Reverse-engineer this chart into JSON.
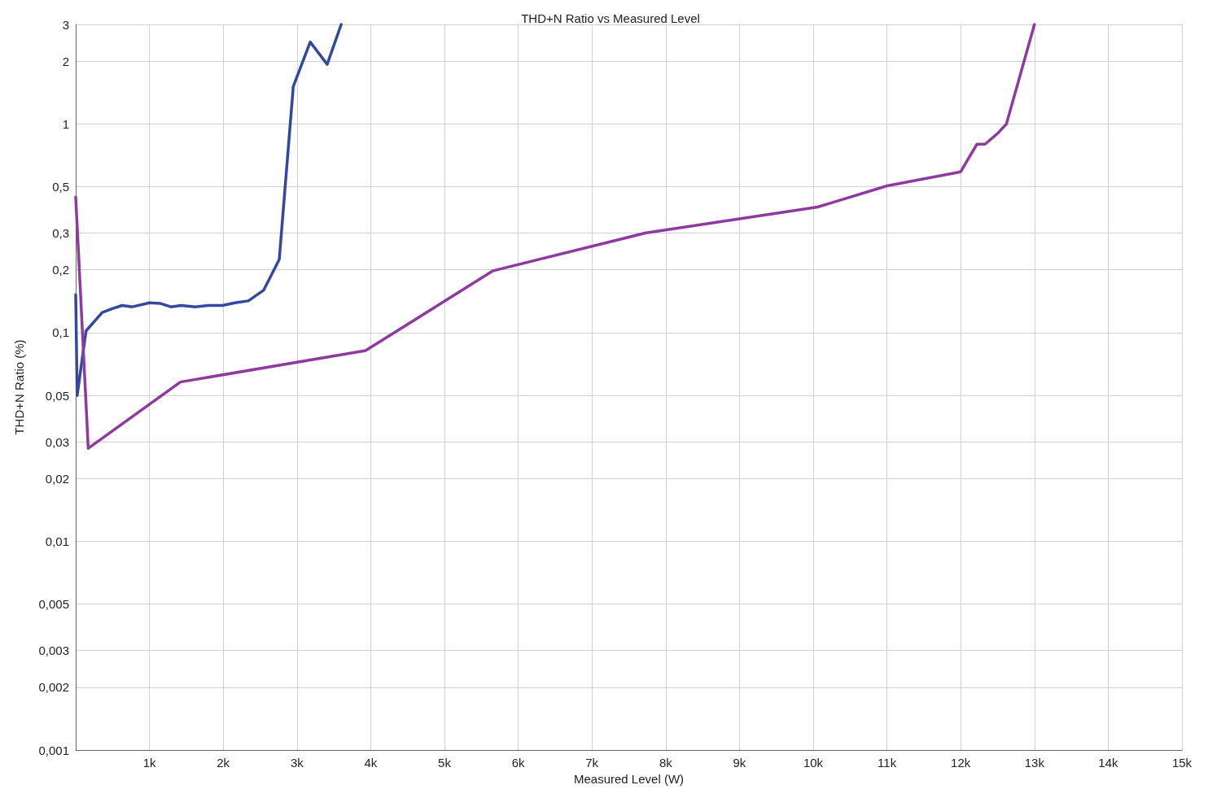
{
  "chart_data": {
    "type": "line",
    "title": "THD+N Ratio vs Measured Level",
    "xlabel": "Measured Level (W)",
    "ylabel": "THD+N Ratio (%)",
    "log": "y",
    "grid": true,
    "marker": "none",
    "line_style": "solid",
    "xlim": [
      0,
      15000
    ],
    "xticks": [
      {
        "value": 0,
        "label": null
      },
      {
        "value": 1000,
        "label": "1k"
      },
      {
        "value": 2000,
        "label": "2k"
      },
      {
        "value": 3000,
        "label": "3k"
      },
      {
        "value": 4000,
        "label": "4k"
      },
      {
        "value": 5000,
        "label": "5k"
      },
      {
        "value": 6000,
        "label": "6k"
      },
      {
        "value": 7000,
        "label": "7k"
      },
      {
        "value": 8000,
        "label": "8k"
      },
      {
        "value": 9000,
        "label": "9k"
      },
      {
        "value": 10000,
        "label": "10k"
      },
      {
        "value": 11000,
        "label": "11k"
      },
      {
        "value": 12000,
        "label": "12k"
      },
      {
        "value": 13000,
        "label": "13k"
      },
      {
        "value": 14000,
        "label": "14k"
      },
      {
        "value": 15000,
        "label": "15k"
      }
    ],
    "ylim": [
      0.001,
      3
    ],
    "yticks": [
      {
        "value": 0.001,
        "label": "0,001"
      },
      {
        "value": 0.002,
        "label": "0,002"
      },
      {
        "value": 0.003,
        "label": "0,003"
      },
      {
        "value": 0.005,
        "label": "0,005"
      },
      {
        "value": 0.01,
        "label": "0,01"
      },
      {
        "value": 0.02,
        "label": "0,02"
      },
      {
        "value": 0.03,
        "label": "0,03"
      },
      {
        "value": 0.05,
        "label": "0,05"
      },
      {
        "value": 0.1,
        "label": "0,1"
      },
      {
        "value": 0.2,
        "label": "0,2"
      },
      {
        "value": 0.3,
        "label": "0,3"
      },
      {
        "value": 0.5,
        "label": "0,5"
      },
      1,
      2,
      3
    ],
    "series": [
      {
        "color": "#3548a0",
        "x": [
          0,
          20,
          140,
          360,
          490,
          630,
          770,
          1000,
          1150,
          1290,
          1430,
          1620,
          1800,
          1990,
          2160,
          2340,
          2550,
          2760,
          2950,
          3180,
          3410,
          3600
        ],
        "values": [
          0.152,
          0.05,
          0.102,
          0.125,
          0.13,
          0.135,
          0.133,
          0.139,
          0.138,
          0.133,
          0.135,
          0.133,
          0.135,
          0.135,
          0.139,
          0.142,
          0.16,
          0.224,
          1.51,
          2.47,
          1.93,
          3
        ]
      },
      {
        "color": "#8e3a9e",
        "x": [
          0,
          170,
          1420,
          3930,
          5660,
          7720,
          10060,
          11000,
          12000,
          12220,
          12330,
          12500,
          12620,
          13000
        ],
        "values": [
          0.446,
          0.0279,
          0.058,
          0.082,
          0.198,
          0.3,
          0.4,
          0.505,
          0.59,
          0.8,
          0.8,
          0.9,
          1,
          3
        ]
      }
    ]
  }
}
